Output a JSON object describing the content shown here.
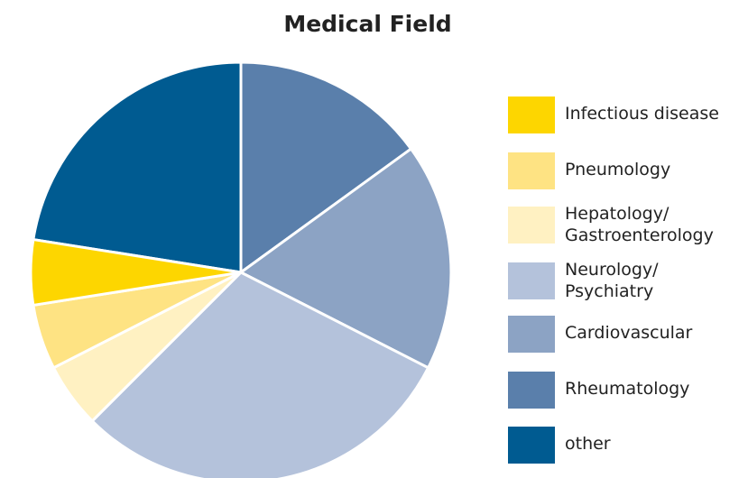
{
  "chart_data": {
    "type": "pie",
    "title": "Medical Field",
    "categories": [
      "Infectious disease",
      "Pneumology",
      "Hepatology/ Gastroenterology",
      "Neurology/ Psychiatry",
      "Cardiovascular",
      "Rheumatology",
      "other"
    ],
    "values": [
      5,
      5,
      5,
      30,
      17.5,
      15,
      22.5
    ],
    "colors": [
      "#fdd600",
      "#fee383",
      "#fff1c2",
      "#b4c2db",
      "#8ca3c4",
      "#5a7fab",
      "#005b91"
    ]
  }
}
